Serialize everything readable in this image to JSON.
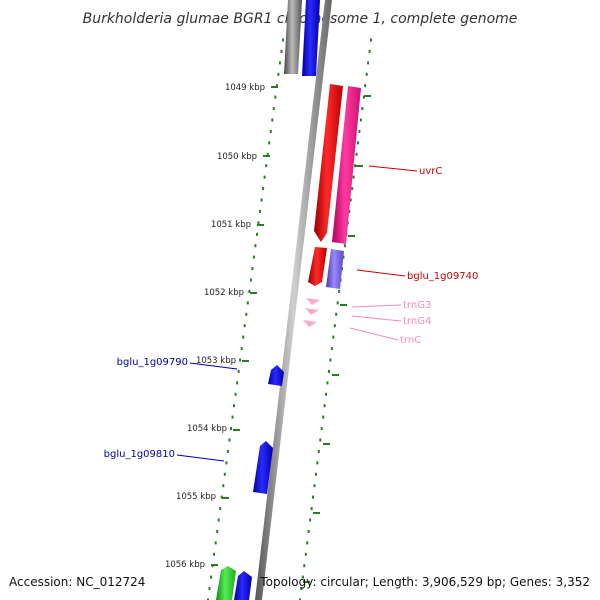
{
  "title": "Burkholderia glumae BGR1 chromosome 1, complete genome",
  "footer": {
    "accession": "Accession: NC_012724",
    "summary": "Topology: circular; Length: 3,906,529 bp; Genes: 3,352"
  },
  "colors": {
    "backbone": "#888888",
    "tick": "#2a7a2a",
    "forward_strand": "#ff0000",
    "pink_cds": "#ff1493",
    "violet_cds": "#7b68ee",
    "trna": "#ffaacc",
    "blue_cds": "#0000ff",
    "green_cds": "#33cc33",
    "gray_cds": "#666666"
  },
  "ticks": [
    {
      "label": "1049 kbp"
    },
    {
      "label": "1050 kbp"
    },
    {
      "label": "1051 kbp"
    },
    {
      "label": "1052 kbp"
    },
    {
      "label": "1053 kbp"
    },
    {
      "label": "1054 kbp"
    },
    {
      "label": "1055 kbp"
    },
    {
      "label": "1056 kbp"
    }
  ],
  "gene_labels": [
    {
      "name": "uvrC",
      "color": "#cc0000"
    },
    {
      "name": "bglu_1g09740",
      "color": "#cc0000"
    },
    {
      "name": "trnG3",
      "color": "#ff88bb"
    },
    {
      "name": "trnG4",
      "color": "#ff88bb"
    },
    {
      "name": "trnC",
      "color": "#ff88bb"
    },
    {
      "name": "bglu_1g09790",
      "color": "#0000aa"
    },
    {
      "name": "bglu_1g09810",
      "color": "#0000aa"
    }
  ]
}
